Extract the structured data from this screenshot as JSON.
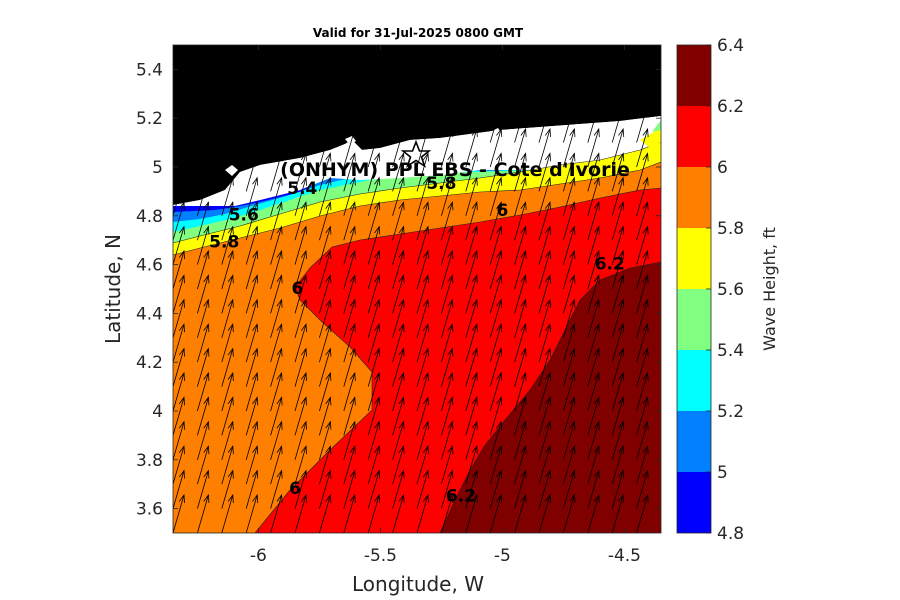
{
  "chart_data": {
    "type": "heatmap",
    "title": "Valid for 31-Jul-2025 0800 GMT",
    "xlabel": "Longitude, W",
    "ylabel": "Latitude, N",
    "xlim": [
      -6.35,
      -4.35
    ],
    "ylim": [
      3.5,
      5.5
    ],
    "xticks": [
      -6,
      -5.5,
      -5,
      -4.5
    ],
    "xtick_labels": [
      "-6",
      "-5.5",
      "-5",
      "-4.5"
    ],
    "yticks": [
      3.6,
      3.8,
      4,
      4.2,
      4.4,
      4.6,
      4.8,
      5,
      5.2,
      5.4
    ],
    "ytick_labels": [
      "3.6",
      "3.8",
      "4",
      "4.2",
      "4.4",
      "4.6",
      "4.8",
      "5",
      "5.2",
      "5.4"
    ],
    "colorbar": {
      "label": "Wave Height, ft",
      "levels": [
        4.8,
        5.0,
        5.2,
        5.4,
        5.6,
        5.8,
        6.0,
        6.2,
        6.4
      ],
      "tick_labels": [
        "4.8",
        "5",
        "5.2",
        "5.4",
        "5.6",
        "5.8",
        "6",
        "6.2",
        "6.4"
      ],
      "colors": [
        "#0000ff",
        "#0080ff",
        "#00ffff",
        "#80ff80",
        "#ffff00",
        "#ff8000",
        "#ff0000",
        "#800000"
      ]
    },
    "contour_labels": [
      {
        "text": "5.4",
        "x": -5.82,
        "y": 4.89
      },
      {
        "text": "5.6",
        "x": -6.06,
        "y": 4.78
      },
      {
        "text": "5.8",
        "x": -6.14,
        "y": 4.67
      },
      {
        "text": "5.8",
        "x": -5.25,
        "y": 4.91
      },
      {
        "text": "6",
        "x": -5.0,
        "y": 4.8
      },
      {
        "text": "6",
        "x": -5.84,
        "y": 4.48
      },
      {
        "text": "6",
        "x": -5.85,
        "y": 3.66
      },
      {
        "text": "6.2",
        "x": -4.56,
        "y": 4.58
      },
      {
        "text": "6.2",
        "x": -5.17,
        "y": 3.63
      }
    ],
    "site": {
      "name": "(ONHYM) PPL EBS  - Cote d'Ivorie",
      "lon": -5.35,
      "lat": 5.05
    },
    "vector_field": "wave direction arrows pointing north-northeast",
    "land_color": "#000000"
  }
}
